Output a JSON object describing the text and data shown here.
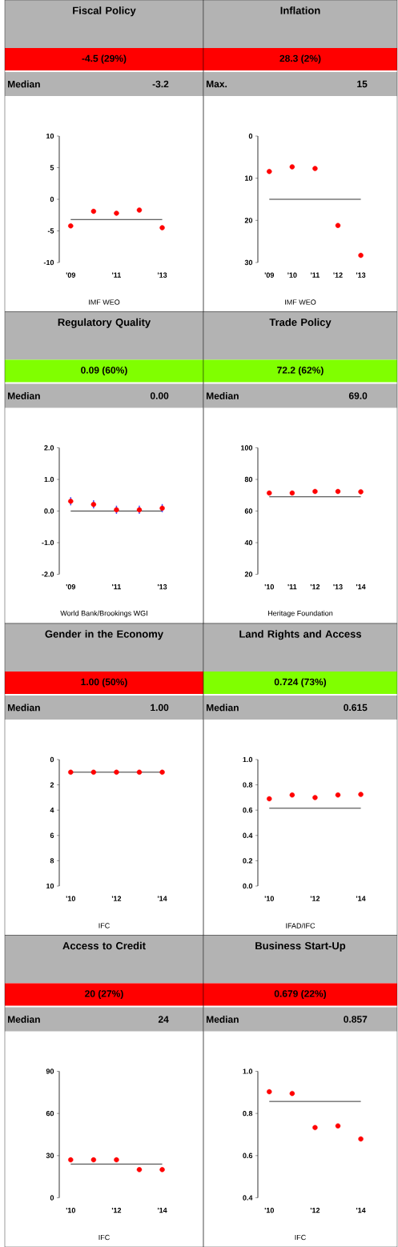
{
  "chart_data": [
    {
      "type": "scatter",
      "title": "Fiscal Policy",
      "subtitle": "-4.5 (29%)",
      "color": "#ff0000",
      "categories": [
        "'09",
        null,
        "'11",
        null,
        "'13"
      ],
      "series": [
        {
          "color": "#ff0000",
          "values": [
            -4.2,
            -1.9,
            -2.2,
            -1.7,
            -4.5
          ]
        }
      ],
      "ylim": [
        -10,
        10
      ],
      "yticks": [
        -10,
        -5,
        0,
        5,
        10
      ],
      "ref_lines": [
        {
          "axis": "y",
          "value": -3.2,
          "label": "Median"
        }
      ],
      "annotations": [
        "-3.2",
        "IMF WEO"
      ]
    },
    {
      "type": "scatter",
      "title": "Inflation",
      "subtitle": "28.3 (2%)",
      "color": "#ff0000",
      "categories": [
        "'09",
        "'10",
        "'11",
        "'12",
        "'13"
      ],
      "series": [
        {
          "color": "#ff0000",
          "values": [
            8.4,
            7.3,
            7.7,
            21.2,
            28.3
          ]
        }
      ],
      "ylim": [
        30,
        0
      ],
      "yticks": [
        0,
        10,
        20,
        30
      ],
      "ref_lines": [
        {
          "axis": "y",
          "value": 15,
          "label": "Max."
        }
      ],
      "annotations": [
        "15",
        "IMF WEO"
      ]
    },
    {
      "type": "scatter",
      "title": "Regulatory Quality",
      "subtitle": "0.09 (60%)",
      "color": "#80ff00",
      "categories": [
        "'09",
        null,
        "'11",
        null,
        "'13"
      ],
      "series": [
        {
          "color": "#ff0000",
          "values": [
            0.31,
            0.21,
            0.04,
            0.04,
            0.09
          ],
          "errors": [
            0.13,
            0.13,
            0.13,
            0.13,
            0.13
          ]
        }
      ],
      "ylim": [
        -2,
        2
      ],
      "yticks": [
        {
          "value": -2,
          "label": "-2.0"
        },
        {
          "value": -1,
          "label": "-1.0"
        },
        {
          "value": 0,
          "label": "0.0"
        },
        {
          "value": 1,
          "label": "1.0"
        },
        {
          "value": 2,
          "label": "2.0"
        }
      ],
      "ref_lines": [
        {
          "axis": "y",
          "value": 0,
          "label": "Median"
        }
      ],
      "annotations": [
        "0.00",
        "World Bank/Brookings WGI"
      ]
    },
    {
      "type": "scatter",
      "title": "Trade Policy",
      "subtitle": "72.2 (62%)",
      "color": "#80ff00",
      "categories": [
        "'10",
        "'11",
        "'12",
        "'13",
        "'14"
      ],
      "series": [
        {
          "color": "#ff0000",
          "values": [
            71.4,
            71.4,
            72.4,
            72.4,
            72.2
          ]
        }
      ],
      "ylim": [
        20,
        100
      ],
      "yticks": [
        20,
        40,
        60,
        80,
        100
      ],
      "ref_lines": [
        {
          "axis": "y",
          "value": 69,
          "label": "Median"
        }
      ],
      "annotations": [
        "69.0",
        "Heritage Foundation"
      ]
    },
    {
      "type": "scatter",
      "title": "Gender in the Economy",
      "subtitle": "1.00 (50%)",
      "color": "#ff0000",
      "categories": [
        "'10",
        null,
        "'12",
        null,
        "'14"
      ],
      "series": [
        {
          "color": "#ff0000",
          "values": [
            1,
            1,
            1,
            1,
            1
          ]
        }
      ],
      "ylim": [
        10,
        0
      ],
      "yticks": [
        0,
        2,
        4,
        6,
        8,
        10
      ],
      "ref_lines": [
        {
          "axis": "y",
          "value": 1,
          "label": "Median"
        }
      ],
      "annotations": [
        "1.00",
        "IFC"
      ]
    },
    {
      "type": "scatter",
      "title": "Land Rights and Access",
      "subtitle": "0.724 (73%)",
      "color": "#80ff00",
      "categories": [
        "'10",
        null,
        "'12",
        null,
        "'14"
      ],
      "series": [
        {
          "color": "#ff0000",
          "values": [
            0.69,
            0.72,
            0.7,
            0.72,
            0.724
          ]
        }
      ],
      "ylim": [
        0,
        1
      ],
      "yticks": [
        {
          "value": 0,
          "label": "0.0"
        },
        {
          "value": 0.2,
          "label": "0.2"
        },
        {
          "value": 0.4,
          "label": "0.4"
        },
        {
          "value": 0.6,
          "label": "0.6"
        },
        {
          "value": 0.8,
          "label": "0.8"
        },
        {
          "value": 1,
          "label": "1.0"
        }
      ],
      "ref_lines": [
        {
          "axis": "y",
          "value": 0.615,
          "label": "Median"
        }
      ],
      "annotations": [
        "0.615",
        "IFAD/IFC"
      ]
    },
    {
      "type": "scatter",
      "title": "Access to Credit",
      "subtitle": "20 (27%)",
      "color": "#ff0000",
      "categories": [
        "'10",
        null,
        "'12",
        null,
        "'14"
      ],
      "series": [
        {
          "color": "#ff0000",
          "values": [
            27,
            27,
            27,
            20,
            20
          ]
        }
      ],
      "ylim": [
        0,
        90
      ],
      "yticks": [
        0,
        30,
        60,
        90
      ],
      "ref_lines": [
        {
          "axis": "y",
          "value": 24,
          "label": "Median"
        }
      ],
      "annotations": [
        "24",
        "IFC"
      ]
    },
    {
      "type": "scatter",
      "title": "Business Start-Up",
      "subtitle": "0.679 (22%)",
      "color": "#ff0000",
      "categories": [
        "'10",
        null,
        "'12",
        null,
        "'14"
      ],
      "series": [
        {
          "color": "#ff0000",
          "values": [
            0.903,
            0.895,
            0.733,
            0.741,
            0.679
          ]
        }
      ],
      "ylim": [
        0.4,
        1
      ],
      "yticks": [
        {
          "value": 0.4,
          "label": "0.4"
        },
        {
          "value": 0.6,
          "label": "0.6"
        },
        {
          "value": 0.8,
          "label": "0.8"
        },
        {
          "value": 1,
          "label": "1.0"
        }
      ],
      "ref_lines": [
        {
          "axis": "y",
          "value": 0.857,
          "label": "Median"
        }
      ],
      "annotations": [
        "0.857",
        "IFC"
      ]
    }
  ]
}
